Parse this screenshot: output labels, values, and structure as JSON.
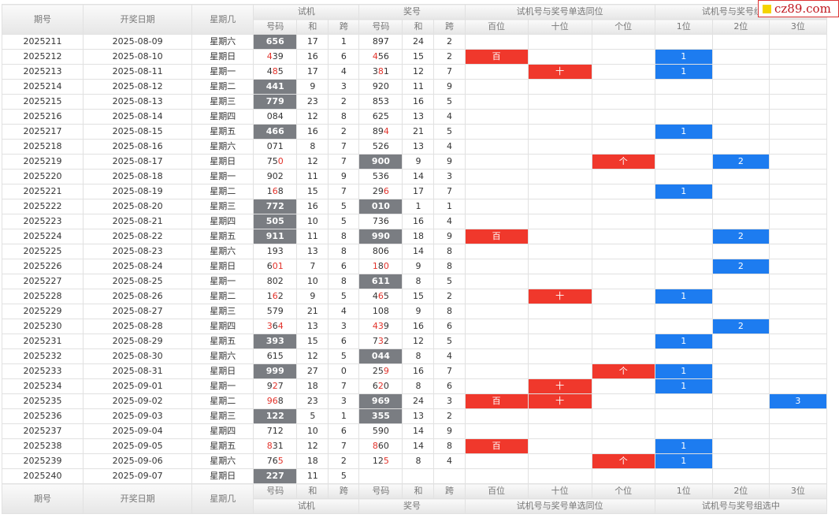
{
  "header": {
    "period": "期号",
    "date": "开奖日期",
    "weekday": "星期几",
    "trial_group": "试机",
    "draw_group": "奖号",
    "single_group": "试机号与奖号单选同位",
    "combo_group": "试机号与奖号组选中",
    "code": "号码",
    "sum": "和",
    "span": "跨",
    "hundreds": "百位",
    "tens": "十位",
    "units": "个位",
    "pos1": "1位",
    "pos2": "2位",
    "pos3": "3位"
  },
  "logo": {
    "text": "cz89.com"
  },
  "rows": [
    {
      "p": "2025211",
      "d": "2025-08-09",
      "w": "星期六",
      "t": "656",
      "tg": true,
      "ts": "17",
      "tk": "1",
      "j": "897",
      "jg": false,
      "js": "24",
      "jk": "2",
      "b": "",
      "s": "",
      "g": "",
      "c1": "",
      "c2": "",
      "c3": ""
    },
    {
      "p": "2025212",
      "d": "2025-08-10",
      "w": "星期日",
      "t": "439",
      "tg": false,
      "ts": "16",
      "tk": "6",
      "j": "456",
      "jg": false,
      "js": "15",
      "jk": "2",
      "b": "百",
      "s": "",
      "g": "",
      "c1": "1",
      "c2": "",
      "c3": ""
    },
    {
      "p": "2025213",
      "d": "2025-08-11",
      "w": "星期一",
      "t": "485",
      "tg": false,
      "ts": "17",
      "tk": "4",
      "j": "381",
      "jg": false,
      "js": "12",
      "jk": "7",
      "b": "",
      "s": "十",
      "g": "",
      "c1": "1",
      "c2": "",
      "c3": ""
    },
    {
      "p": "2025214",
      "d": "2025-08-12",
      "w": "星期二",
      "t": "441",
      "tg": true,
      "ts": "9",
      "tk": "3",
      "j": "920",
      "jg": false,
      "js": "11",
      "jk": "9",
      "b": "",
      "s": "",
      "g": "",
      "c1": "",
      "c2": "",
      "c3": ""
    },
    {
      "p": "2025215",
      "d": "2025-08-13",
      "w": "星期三",
      "t": "779",
      "tg": true,
      "ts": "23",
      "tk": "2",
      "j": "853",
      "jg": false,
      "js": "16",
      "jk": "5",
      "b": "",
      "s": "",
      "g": "",
      "c1": "",
      "c2": "",
      "c3": ""
    },
    {
      "p": "2025216",
      "d": "2025-08-14",
      "w": "星期四",
      "t": "084",
      "tg": false,
      "ts": "12",
      "tk": "8",
      "j": "625",
      "jg": false,
      "js": "13",
      "jk": "4",
      "b": "",
      "s": "",
      "g": "",
      "c1": "",
      "c2": "",
      "c3": ""
    },
    {
      "p": "2025217",
      "d": "2025-08-15",
      "w": "星期五",
      "t": "466",
      "tg": true,
      "ts": "16",
      "tk": "2",
      "j": "894",
      "jg": false,
      "js": "21",
      "jk": "5",
      "b": "",
      "s": "",
      "g": "",
      "c1": "1",
      "c2": "",
      "c3": ""
    },
    {
      "p": "2025218",
      "d": "2025-08-16",
      "w": "星期六",
      "t": "071",
      "tg": false,
      "ts": "8",
      "tk": "7",
      "j": "526",
      "jg": false,
      "js": "13",
      "jk": "4",
      "b": "",
      "s": "",
      "g": "",
      "c1": "",
      "c2": "",
      "c3": ""
    },
    {
      "p": "2025219",
      "d": "2025-08-17",
      "w": "星期日",
      "t": "750",
      "tg": false,
      "ts": "12",
      "tk": "7",
      "j": "900",
      "jg": true,
      "js": "9",
      "jk": "9",
      "b": "",
      "s": "",
      "g": "个",
      "c1": "",
      "c2": "2",
      "c3": ""
    },
    {
      "p": "2025220",
      "d": "2025-08-18",
      "w": "星期一",
      "t": "902",
      "tg": false,
      "ts": "11",
      "tk": "9",
      "j": "536",
      "jg": false,
      "js": "14",
      "jk": "3",
      "b": "",
      "s": "",
      "g": "",
      "c1": "",
      "c2": "",
      "c3": ""
    },
    {
      "p": "2025221",
      "d": "2025-08-19",
      "w": "星期二",
      "t": "168",
      "tg": false,
      "ts": "15",
      "tk": "7",
      "j": "296",
      "jg": false,
      "js": "17",
      "jk": "7",
      "b": "",
      "s": "",
      "g": "",
      "c1": "1",
      "c2": "",
      "c3": ""
    },
    {
      "p": "2025222",
      "d": "2025-08-20",
      "w": "星期三",
      "t": "772",
      "tg": true,
      "ts": "16",
      "tk": "5",
      "j": "010",
      "jg": true,
      "js": "1",
      "jk": "1",
      "b": "",
      "s": "",
      "g": "",
      "c1": "",
      "c2": "",
      "c3": ""
    },
    {
      "p": "2025223",
      "d": "2025-08-21",
      "w": "星期四",
      "t": "505",
      "tg": true,
      "ts": "10",
      "tk": "5",
      "j": "736",
      "jg": false,
      "js": "16",
      "jk": "4",
      "b": "",
      "s": "",
      "g": "",
      "c1": "",
      "c2": "",
      "c3": ""
    },
    {
      "p": "2025224",
      "d": "2025-08-22",
      "w": "星期五",
      "t": "911",
      "tg": true,
      "ts": "11",
      "tk": "8",
      "j": "990",
      "jg": true,
      "js": "18",
      "jk": "9",
      "b": "百",
      "s": "",
      "g": "",
      "c1": "",
      "c2": "2",
      "c3": ""
    },
    {
      "p": "2025225",
      "d": "2025-08-23",
      "w": "星期六",
      "t": "193",
      "tg": false,
      "ts": "13",
      "tk": "8",
      "j": "806",
      "jg": false,
      "js": "14",
      "jk": "8",
      "b": "",
      "s": "",
      "g": "",
      "c1": "",
      "c2": "",
      "c3": ""
    },
    {
      "p": "2025226",
      "d": "2025-08-24",
      "w": "星期日",
      "t": "601",
      "tg": false,
      "ts": "7",
      "tk": "6",
      "j": "180",
      "jg": false,
      "js": "9",
      "jk": "8",
      "b": "",
      "s": "",
      "g": "",
      "c1": "",
      "c2": "2",
      "c3": ""
    },
    {
      "p": "2025227",
      "d": "2025-08-25",
      "w": "星期一",
      "t": "802",
      "tg": false,
      "ts": "10",
      "tk": "8",
      "j": "611",
      "jg": true,
      "js": "8",
      "jk": "5",
      "b": "",
      "s": "",
      "g": "",
      "c1": "",
      "c2": "",
      "c3": ""
    },
    {
      "p": "2025228",
      "d": "2025-08-26",
      "w": "星期二",
      "t": "162",
      "tg": false,
      "ts": "9",
      "tk": "5",
      "j": "465",
      "jg": false,
      "js": "15",
      "jk": "2",
      "b": "",
      "s": "十",
      "g": "",
      "c1": "1",
      "c2": "",
      "c3": ""
    },
    {
      "p": "2025229",
      "d": "2025-08-27",
      "w": "星期三",
      "t": "579",
      "tg": false,
      "ts": "21",
      "tk": "4",
      "j": "108",
      "jg": false,
      "js": "9",
      "jk": "8",
      "b": "",
      "s": "",
      "g": "",
      "c1": "",
      "c2": "",
      "c3": ""
    },
    {
      "p": "2025230",
      "d": "2025-08-28",
      "w": "星期四",
      "t": "364",
      "tg": false,
      "ts": "13",
      "tk": "3",
      "j": "439",
      "jg": false,
      "js": "16",
      "jk": "6",
      "b": "",
      "s": "",
      "g": "",
      "c1": "",
      "c2": "2",
      "c3": ""
    },
    {
      "p": "2025231",
      "d": "2025-08-29",
      "w": "星期五",
      "t": "393",
      "tg": true,
      "ts": "15",
      "tk": "6",
      "j": "732",
      "jg": false,
      "js": "12",
      "jk": "5",
      "b": "",
      "s": "",
      "g": "",
      "c1": "1",
      "c2": "",
      "c3": ""
    },
    {
      "p": "2025232",
      "d": "2025-08-30",
      "w": "星期六",
      "t": "615",
      "tg": false,
      "ts": "12",
      "tk": "5",
      "j": "044",
      "jg": true,
      "js": "8",
      "jk": "4",
      "b": "",
      "s": "",
      "g": "",
      "c1": "",
      "c2": "",
      "c3": ""
    },
    {
      "p": "2025233",
      "d": "2025-08-31",
      "w": "星期日",
      "t": "999",
      "tg": true,
      "ts": "27",
      "tk": "0",
      "j": "259",
      "jg": false,
      "js": "16",
      "jk": "7",
      "b": "",
      "s": "",
      "g": "个",
      "c1": "1",
      "c2": "",
      "c3": ""
    },
    {
      "p": "2025234",
      "d": "2025-09-01",
      "w": "星期一",
      "t": "927",
      "tg": false,
      "ts": "18",
      "tk": "7",
      "j": "620",
      "jg": false,
      "js": "8",
      "jk": "6",
      "b": "",
      "s": "十",
      "g": "",
      "c1": "1",
      "c2": "",
      "c3": ""
    },
    {
      "p": "2025235",
      "d": "2025-09-02",
      "w": "星期二",
      "t": "968",
      "tg": false,
      "ts": "23",
      "tk": "3",
      "j": "969",
      "jg": true,
      "js": "24",
      "jk": "3",
      "b": "百",
      "s": "十",
      "g": "",
      "c1": "",
      "c2": "",
      "c3": "3"
    },
    {
      "p": "2025236",
      "d": "2025-09-03",
      "w": "星期三",
      "t": "122",
      "tg": true,
      "ts": "5",
      "tk": "1",
      "j": "355",
      "jg": true,
      "js": "13",
      "jk": "2",
      "b": "",
      "s": "",
      "g": "",
      "c1": "",
      "c2": "",
      "c3": ""
    },
    {
      "p": "2025237",
      "d": "2025-09-04",
      "w": "星期四",
      "t": "712",
      "tg": false,
      "ts": "10",
      "tk": "6",
      "j": "590",
      "jg": false,
      "js": "14",
      "jk": "9",
      "b": "",
      "s": "",
      "g": "",
      "c1": "",
      "c2": "",
      "c3": ""
    },
    {
      "p": "2025238",
      "d": "2025-09-05",
      "w": "星期五",
      "t": "831",
      "tg": false,
      "ts": "12",
      "tk": "7",
      "j": "860",
      "jg": false,
      "js": "14",
      "jk": "8",
      "b": "百",
      "s": "",
      "g": "",
      "c1": "1",
      "c2": "",
      "c3": ""
    },
    {
      "p": "2025239",
      "d": "2025-09-06",
      "w": "星期六",
      "t": "765",
      "tg": false,
      "ts": "18",
      "tk": "2",
      "j": "125",
      "jg": false,
      "js": "8",
      "jk": "4",
      "b": "",
      "s": "",
      "g": "个",
      "c1": "1",
      "c2": "",
      "c3": ""
    },
    {
      "p": "2025240",
      "d": "2025-09-07",
      "w": "星期日",
      "t": "227",
      "tg": true,
      "ts": "11",
      "tk": "5",
      "j": "",
      "jg": false,
      "js": "",
      "jk": "",
      "b": "",
      "s": "",
      "g": "",
      "c1": "",
      "c2": "",
      "c3": ""
    }
  ]
}
